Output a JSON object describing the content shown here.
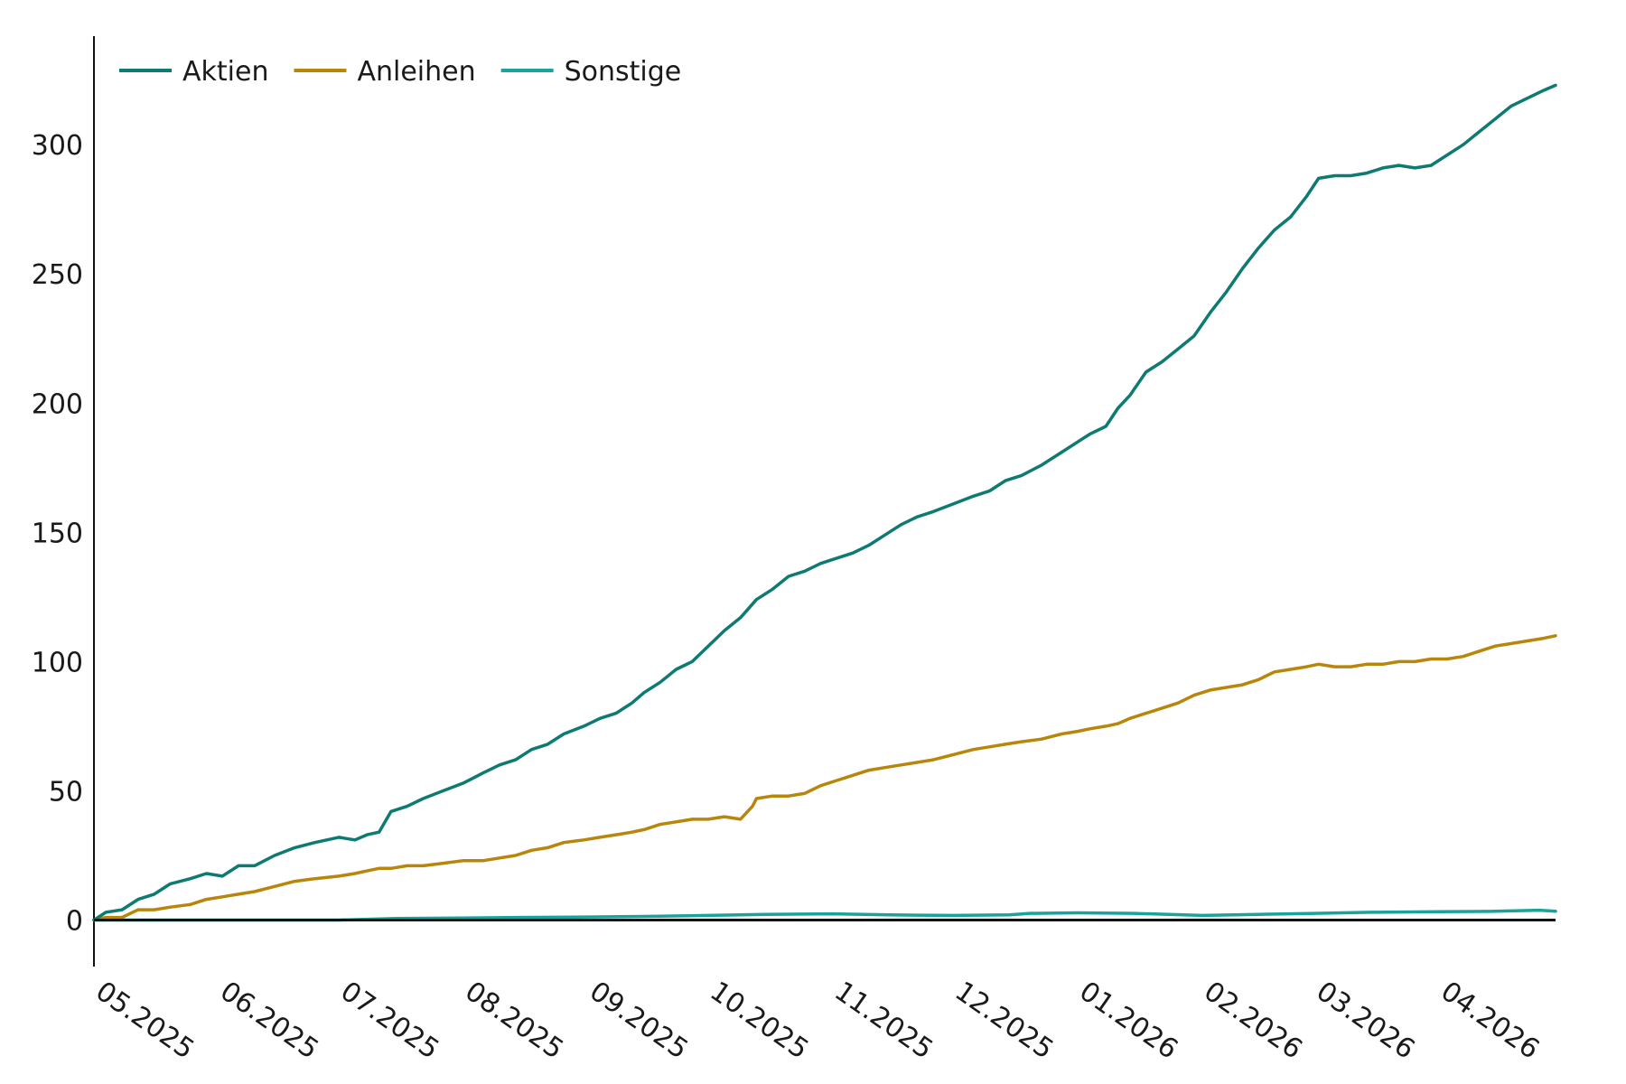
{
  "chart_data": {
    "type": "line",
    "title": "",
    "xlabel": "",
    "ylabel": "",
    "ylim": [
      -18,
      342
    ],
    "y_ticks": [
      0,
      50,
      100,
      150,
      200,
      250,
      300
    ],
    "x_range": [
      "2025-05-01",
      "2026-04-30"
    ],
    "x_ticks": [
      {
        "date": "2025-05-01",
        "label": "05.2025"
      },
      {
        "date": "2025-06-01",
        "label": "06.2025"
      },
      {
        "date": "2025-07-01",
        "label": "07.2025"
      },
      {
        "date": "2025-08-01",
        "label": "08.2025"
      },
      {
        "date": "2025-09-01",
        "label": "09.2025"
      },
      {
        "date": "2025-10-01",
        "label": "10.2025"
      },
      {
        "date": "2025-11-01",
        "label": "11.2025"
      },
      {
        "date": "2025-12-01",
        "label": "12.2025"
      },
      {
        "date": "2026-01-01",
        "label": "01.2026"
      },
      {
        "date": "2026-02-01",
        "label": "02.2026"
      },
      {
        "date": "2026-03-01",
        "label": "03.2026"
      },
      {
        "date": "2026-04-01",
        "label": "04.2026"
      }
    ],
    "legend_position": "top-left",
    "grid": false,
    "series": [
      {
        "name": "Aktien",
        "color": "#0e7b72",
        "points": [
          [
            "2025-05-01",
            0
          ],
          [
            "2025-05-04",
            3
          ],
          [
            "2025-05-08",
            4
          ],
          [
            "2025-05-12",
            8
          ],
          [
            "2025-05-16",
            10
          ],
          [
            "2025-05-20",
            14
          ],
          [
            "2025-05-25",
            16
          ],
          [
            "2025-05-29",
            18
          ],
          [
            "2025-06-02",
            17
          ],
          [
            "2025-06-06",
            21
          ],
          [
            "2025-06-10",
            21
          ],
          [
            "2025-06-15",
            25
          ],
          [
            "2025-06-20",
            28
          ],
          [
            "2025-06-25",
            30
          ],
          [
            "2025-07-01",
            32
          ],
          [
            "2025-07-05",
            31
          ],
          [
            "2025-07-08",
            33
          ],
          [
            "2025-07-11",
            34
          ],
          [
            "2025-07-14",
            42
          ],
          [
            "2025-07-18",
            44
          ],
          [
            "2025-07-22",
            47
          ],
          [
            "2025-07-27",
            50
          ],
          [
            "2025-08-01",
            53
          ],
          [
            "2025-08-06",
            57
          ],
          [
            "2025-08-10",
            60
          ],
          [
            "2025-08-14",
            62
          ],
          [
            "2025-08-18",
            66
          ],
          [
            "2025-08-22",
            68
          ],
          [
            "2025-08-26",
            72
          ],
          [
            "2025-08-31",
            75
          ],
          [
            "2025-09-04",
            78
          ],
          [
            "2025-09-08",
            80
          ],
          [
            "2025-09-12",
            84
          ],
          [
            "2025-09-15",
            88
          ],
          [
            "2025-09-19",
            92
          ],
          [
            "2025-09-23",
            97
          ],
          [
            "2025-09-27",
            100
          ],
          [
            "2025-10-01",
            106
          ],
          [
            "2025-10-05",
            112
          ],
          [
            "2025-10-09",
            117
          ],
          [
            "2025-10-13",
            124
          ],
          [
            "2025-10-17",
            128
          ],
          [
            "2025-10-21",
            133
          ],
          [
            "2025-10-25",
            135
          ],
          [
            "2025-10-29",
            138
          ],
          [
            "2025-11-02",
            140
          ],
          [
            "2025-11-06",
            142
          ],
          [
            "2025-11-10",
            145
          ],
          [
            "2025-11-14",
            149
          ],
          [
            "2025-11-18",
            153
          ],
          [
            "2025-11-22",
            156
          ],
          [
            "2025-11-26",
            158
          ],
          [
            "2025-12-01",
            161
          ],
          [
            "2025-12-06",
            164
          ],
          [
            "2025-12-10",
            166
          ],
          [
            "2025-12-14",
            170
          ],
          [
            "2025-12-18",
            172
          ],
          [
            "2025-12-23",
            176
          ],
          [
            "2025-12-28",
            181
          ],
          [
            "2026-01-01",
            185
          ],
          [
            "2026-01-04",
            188
          ],
          [
            "2026-01-08",
            191
          ],
          [
            "2026-01-11",
            198
          ],
          [
            "2026-01-14",
            203
          ],
          [
            "2026-01-18",
            212
          ],
          [
            "2026-01-22",
            216
          ],
          [
            "2026-01-26",
            221
          ],
          [
            "2026-01-30",
            226
          ],
          [
            "2026-02-03",
            235
          ],
          [
            "2026-02-07",
            243
          ],
          [
            "2026-02-11",
            252
          ],
          [
            "2026-02-15",
            260
          ],
          [
            "2026-02-19",
            267
          ],
          [
            "2026-02-23",
            272
          ],
          [
            "2026-02-27",
            280
          ],
          [
            "2026-03-02",
            287
          ],
          [
            "2026-03-06",
            288
          ],
          [
            "2026-03-10",
            288
          ],
          [
            "2026-03-14",
            289
          ],
          [
            "2026-03-18",
            291
          ],
          [
            "2026-03-22",
            292
          ],
          [
            "2026-03-26",
            291
          ],
          [
            "2026-03-30",
            292
          ],
          [
            "2026-04-03",
            296
          ],
          [
            "2026-04-07",
            300
          ],
          [
            "2026-04-11",
            305
          ],
          [
            "2026-04-15",
            310
          ],
          [
            "2026-04-19",
            315
          ],
          [
            "2026-04-23",
            318
          ],
          [
            "2026-04-27",
            321
          ],
          [
            "2026-04-30",
            323
          ]
        ]
      },
      {
        "name": "Anleihen",
        "color": "#b8860b",
        "points": [
          [
            "2025-05-01",
            0
          ],
          [
            "2025-05-04",
            1
          ],
          [
            "2025-05-08",
            1
          ],
          [
            "2025-05-12",
            4
          ],
          [
            "2025-05-16",
            4
          ],
          [
            "2025-05-20",
            5
          ],
          [
            "2025-05-25",
            6
          ],
          [
            "2025-05-29",
            8
          ],
          [
            "2025-06-02",
            9
          ],
          [
            "2025-06-06",
            10
          ],
          [
            "2025-06-10",
            11
          ],
          [
            "2025-06-15",
            13
          ],
          [
            "2025-06-20",
            15
          ],
          [
            "2025-06-25",
            16
          ],
          [
            "2025-07-01",
            17
          ],
          [
            "2025-07-05",
            18
          ],
          [
            "2025-07-08",
            19
          ],
          [
            "2025-07-11",
            20
          ],
          [
            "2025-07-14",
            20
          ],
          [
            "2025-07-18",
            21
          ],
          [
            "2025-07-22",
            21
          ],
          [
            "2025-07-27",
            22
          ],
          [
            "2025-08-01",
            23
          ],
          [
            "2025-08-06",
            23
          ],
          [
            "2025-08-10",
            24
          ],
          [
            "2025-08-14",
            25
          ],
          [
            "2025-08-18",
            27
          ],
          [
            "2025-08-22",
            28
          ],
          [
            "2025-08-26",
            30
          ],
          [
            "2025-08-31",
            31
          ],
          [
            "2025-09-04",
            32
          ],
          [
            "2025-09-08",
            33
          ],
          [
            "2025-09-12",
            34
          ],
          [
            "2025-09-15",
            35
          ],
          [
            "2025-09-19",
            37
          ],
          [
            "2025-09-23",
            38
          ],
          [
            "2025-09-27",
            39
          ],
          [
            "2025-10-01",
            39
          ],
          [
            "2025-10-05",
            40
          ],
          [
            "2025-10-09",
            39
          ],
          [
            "2025-10-12",
            44
          ],
          [
            "2025-10-13",
            47
          ],
          [
            "2025-10-17",
            48
          ],
          [
            "2025-10-21",
            48
          ],
          [
            "2025-10-25",
            49
          ],
          [
            "2025-10-29",
            52
          ],
          [
            "2025-11-02",
            54
          ],
          [
            "2025-11-06",
            56
          ],
          [
            "2025-11-10",
            58
          ],
          [
            "2025-11-14",
            59
          ],
          [
            "2025-11-18",
            60
          ],
          [
            "2025-11-22",
            61
          ],
          [
            "2025-11-26",
            62
          ],
          [
            "2025-12-01",
            64
          ],
          [
            "2025-12-06",
            66
          ],
          [
            "2025-12-10",
            67
          ],
          [
            "2025-12-14",
            68
          ],
          [
            "2025-12-18",
            69
          ],
          [
            "2025-12-23",
            70
          ],
          [
            "2025-12-28",
            72
          ],
          [
            "2026-01-01",
            73
          ],
          [
            "2026-01-04",
            74
          ],
          [
            "2026-01-08",
            75
          ],
          [
            "2026-01-11",
            76
          ],
          [
            "2026-01-14",
            78
          ],
          [
            "2026-01-18",
            80
          ],
          [
            "2026-01-22",
            82
          ],
          [
            "2026-01-26",
            84
          ],
          [
            "2026-01-30",
            87
          ],
          [
            "2026-02-03",
            89
          ],
          [
            "2026-02-07",
            90
          ],
          [
            "2026-02-11",
            91
          ],
          [
            "2026-02-15",
            93
          ],
          [
            "2026-02-19",
            96
          ],
          [
            "2026-02-23",
            97
          ],
          [
            "2026-02-27",
            98
          ],
          [
            "2026-03-02",
            99
          ],
          [
            "2026-03-06",
            98
          ],
          [
            "2026-03-10",
            98
          ],
          [
            "2026-03-14",
            99
          ],
          [
            "2026-03-18",
            99
          ],
          [
            "2026-03-22",
            100
          ],
          [
            "2026-03-26",
            100
          ],
          [
            "2026-03-30",
            101
          ],
          [
            "2026-04-03",
            101
          ],
          [
            "2026-04-07",
            102
          ],
          [
            "2026-04-11",
            104
          ],
          [
            "2026-04-15",
            106
          ],
          [
            "2026-04-19",
            107
          ],
          [
            "2026-04-23",
            108
          ],
          [
            "2026-04-27",
            109
          ],
          [
            "2026-04-30",
            110
          ]
        ]
      },
      {
        "name": "Sonstige",
        "color": "#1aa39a",
        "points": [
          [
            "2025-05-01",
            0
          ],
          [
            "2025-05-15",
            0
          ],
          [
            "2025-06-01",
            0
          ],
          [
            "2025-06-15",
            0
          ],
          [
            "2025-07-01",
            0
          ],
          [
            "2025-07-15",
            0.6
          ],
          [
            "2025-08-01",
            0.8
          ],
          [
            "2025-08-15",
            1
          ],
          [
            "2025-09-01",
            1.2
          ],
          [
            "2025-09-15",
            1.4
          ],
          [
            "2025-10-01",
            1.8
          ],
          [
            "2025-10-15",
            2.2
          ],
          [
            "2025-11-01",
            2.4
          ],
          [
            "2025-11-15",
            2.0
          ],
          [
            "2025-12-01",
            1.8
          ],
          [
            "2025-12-15",
            2.0
          ],
          [
            "2025-12-20",
            2.6
          ],
          [
            "2026-01-01",
            2.8
          ],
          [
            "2026-01-15",
            2.6
          ],
          [
            "2026-02-01",
            1.8
          ],
          [
            "2026-02-15",
            2.2
          ],
          [
            "2026-03-01",
            2.6
          ],
          [
            "2026-03-15",
            3.0
          ],
          [
            "2026-04-01",
            3.2
          ],
          [
            "2026-04-15",
            3.4
          ],
          [
            "2026-04-26",
            3.8
          ],
          [
            "2026-04-30",
            3.4
          ]
        ]
      }
    ]
  }
}
